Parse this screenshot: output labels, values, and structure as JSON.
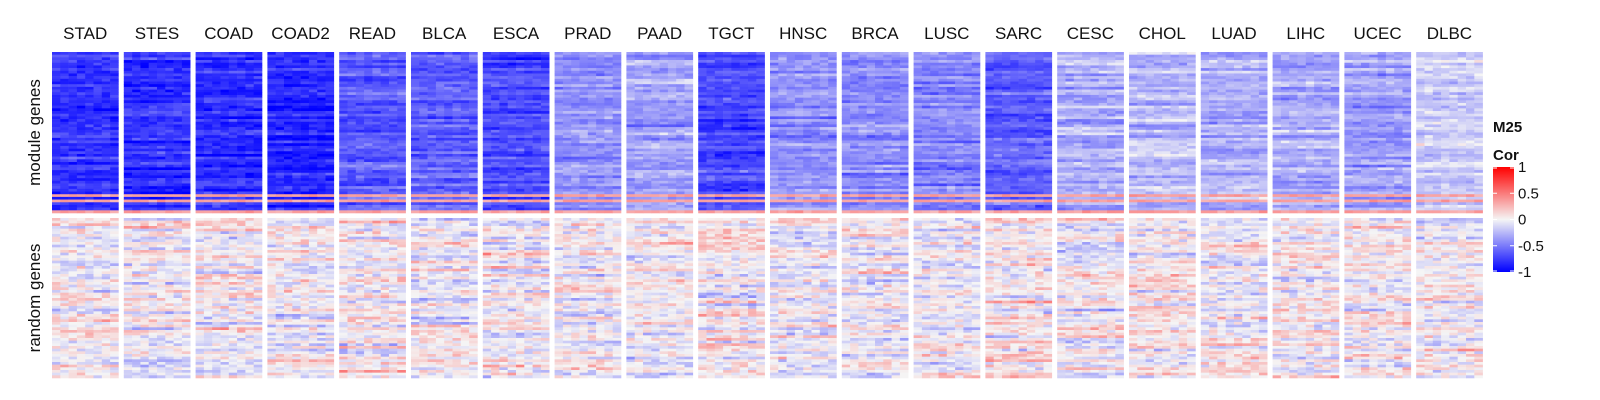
{
  "chart_data": {
    "type": "heatmap",
    "title": "",
    "columns": [
      "STAD",
      "STES",
      "COAD",
      "COAD2",
      "READ",
      "BLCA",
      "ESCA",
      "PRAD",
      "PAAD",
      "TGCT",
      "HNSC",
      "BRCA",
      "LUSC",
      "SARC",
      "CESC",
      "CHOL",
      "LUAD",
      "LIHC",
      "UCEC",
      "DLBC"
    ],
    "row_groups": [
      {
        "label": "module genes",
        "mean_cor": [
          -0.8,
          -0.8,
          -0.82,
          -0.85,
          -0.6,
          -0.62,
          -0.7,
          -0.4,
          -0.35,
          -0.7,
          -0.4,
          -0.45,
          -0.45,
          -0.6,
          -0.3,
          -0.25,
          -0.3,
          -0.3,
          -0.35,
          -0.15
        ]
      },
      {
        "label": "random genes",
        "mean_cor": [
          0.0,
          0.0,
          0.0,
          0.0,
          0.0,
          0.0,
          0.0,
          0.0,
          0.0,
          0.05,
          0.0,
          0.0,
          0.0,
          0.05,
          0.0,
          0.05,
          0.0,
          0.0,
          0.0,
          0.0
        ]
      }
    ],
    "legend": {
      "title_lines": [
        "M25",
        "Cor"
      ],
      "ticks": [
        "1",
        "0.5",
        "0",
        "-0.5",
        "-1"
      ],
      "tick_values": [
        1,
        0.5,
        0,
        -0.5,
        -1
      ],
      "range": [
        -1,
        1
      ],
      "colors": {
        "low": "#0000ff",
        "mid": "#f5f5f5",
        "high": "#ff0000"
      },
      "placement": "right"
    }
  }
}
